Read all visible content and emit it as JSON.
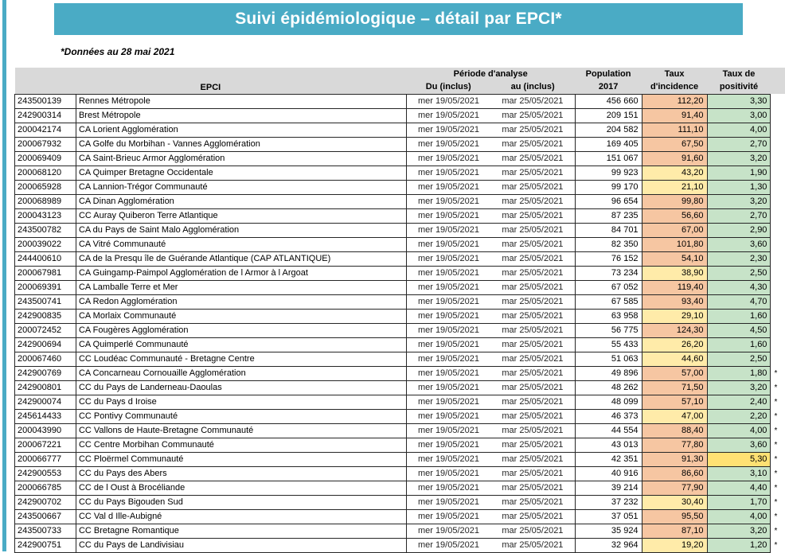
{
  "page": {
    "title": "Suivi épidémiologique – détail par EPCI*",
    "subtitle": "*Données au 28 mai 2021"
  },
  "colors": {
    "banner_teal": "#4aabc5",
    "header_gray": "#d9d9d9",
    "incidence_high_salmon": "#f6c6a2",
    "incidence_moderate_yellow": "#ffeba9",
    "positivity_green": "#c7e3c8",
    "positivity_gold": "#ffe173",
    "link_blue": "#4472c4"
  },
  "table": {
    "headers": {
      "epci": "EPCI",
      "periode": "Période d'analyse",
      "du": "Du (inclus)",
      "au": "au (inclus)",
      "population_l1": "Population",
      "population_l2": "2017",
      "incidence_l1": "Taux",
      "incidence_l2": "d'incidence",
      "positivite_l1": "Taux de",
      "positivite_l2": "positivité"
    },
    "rows": [
      {
        "code": "243500139",
        "name": "Rennes Métropole",
        "du": "mer 19/05/2021",
        "au": "mar 25/05/2021",
        "au_blue": true,
        "population": "456 660",
        "incidence": "112,20",
        "inc_level": "salmon",
        "positivite": "3,30",
        "pos_level": "green",
        "star": false
      },
      {
        "code": "242900314",
        "name": "Brest Métropole",
        "du": "mer 19/05/2021",
        "au": "mar 25/05/2021",
        "au_blue": false,
        "population": "209 151",
        "incidence": "91,40",
        "inc_level": "salmon",
        "positivite": "3,00",
        "pos_level": "green",
        "star": false
      },
      {
        "code": "200042174",
        "name": "CA Lorient Agglomération",
        "du": "mer 19/05/2021",
        "au": "mar 25/05/2021",
        "au_blue": false,
        "population": "204 582",
        "incidence": "111,10",
        "inc_level": "salmon",
        "positivite": "4,00",
        "pos_level": "green",
        "star": false
      },
      {
        "code": "200067932",
        "name": "CA Golfe du Morbihan - Vannes Agglomération",
        "du": "mer 19/05/2021",
        "au": "mar 25/05/2021",
        "au_blue": false,
        "population": "169 405",
        "incidence": "67,50",
        "inc_level": "salmon",
        "positivite": "2,70",
        "pos_level": "green",
        "star": false
      },
      {
        "code": "200069409",
        "name": "CA Saint-Brieuc Armor Agglomération",
        "du": "mer 19/05/2021",
        "au": "mar 25/05/2021",
        "au_blue": false,
        "population": "151 067",
        "incidence": "91,60",
        "inc_level": "salmon",
        "positivite": "3,20",
        "pos_level": "green",
        "star": false
      },
      {
        "code": "200068120",
        "name": "CA Quimper Bretagne Occidentale",
        "du": "mer 19/05/2021",
        "au": "mar 25/05/2021",
        "au_blue": false,
        "population": "99 923",
        "incidence": "43,20",
        "inc_level": "yellow",
        "positivite": "1,90",
        "pos_level": "green",
        "star": false
      },
      {
        "code": "200065928",
        "name": "CA Lannion-Trégor Communauté",
        "du": "mer 19/05/2021",
        "au": "mar 25/05/2021",
        "au_blue": false,
        "population": "99 170",
        "incidence": "21,10",
        "inc_level": "yellow",
        "positivite": "1,30",
        "pos_level": "green",
        "star": false
      },
      {
        "code": "200068989",
        "name": "CA Dinan Agglomération",
        "du": "mer 19/05/2021",
        "au": "mar 25/05/2021",
        "au_blue": false,
        "population": "96 654",
        "incidence": "99,80",
        "inc_level": "salmon",
        "positivite": "3,20",
        "pos_level": "green",
        "star": false
      },
      {
        "code": "200043123",
        "name": "CC Auray Quiberon Terre Atlantique",
        "du": "mer 19/05/2021",
        "au": "mar 25/05/2021",
        "au_blue": false,
        "population": "87 235",
        "incidence": "56,60",
        "inc_level": "salmon",
        "positivite": "2,70",
        "pos_level": "green",
        "star": false
      },
      {
        "code": "243500782",
        "name": "CA du Pays de Saint Malo Agglomération",
        "du": "mer 19/05/2021",
        "au": "mar 25/05/2021",
        "au_blue": false,
        "population": "84 701",
        "incidence": "67,00",
        "inc_level": "salmon",
        "positivite": "2,90",
        "pos_level": "green",
        "star": false
      },
      {
        "code": "200039022",
        "name": "CA Vitré Communauté",
        "du": "mer 19/05/2021",
        "au": "mar 25/05/2021",
        "au_blue": false,
        "population": "82 350",
        "incidence": "101,80",
        "inc_level": "salmon",
        "positivite": "3,60",
        "pos_level": "green",
        "star": false
      },
      {
        "code": "244400610",
        "name": "CA de la Presqu île de Guérande Atlantique (CAP ATLANTIQUE)",
        "du": "mer 19/05/2021",
        "au": "mar 25/05/2021",
        "au_blue": false,
        "population": "76 152",
        "incidence": "54,10",
        "inc_level": "salmon",
        "positivite": "2,30",
        "pos_level": "green",
        "star": false
      },
      {
        "code": "200067981",
        "name": "CA Guingamp-Paimpol Agglomération de l Armor à  l Argoat",
        "du": "mer 19/05/2021",
        "au": "mar 25/05/2021",
        "au_blue": false,
        "population": "73 234",
        "incidence": "38,90",
        "inc_level": "yellow",
        "positivite": "2,50",
        "pos_level": "green",
        "star": false
      },
      {
        "code": "200069391",
        "name": "CA Lamballe Terre et Mer",
        "du": "mer 19/05/2021",
        "au": "mar 25/05/2021",
        "au_blue": false,
        "population": "67 052",
        "incidence": "119,40",
        "inc_level": "salmon",
        "positivite": "4,30",
        "pos_level": "green",
        "star": false
      },
      {
        "code": "243500741",
        "name": "CA Redon Agglomération",
        "du": "mer 19/05/2021",
        "au": "mar 25/05/2021",
        "au_blue": false,
        "population": "67 585",
        "incidence": "93,40",
        "inc_level": "salmon",
        "positivite": "4,70",
        "pos_level": "green",
        "star": false
      },
      {
        "code": "242900835",
        "name": "CA Morlaix Communauté",
        "du": "mer 19/05/2021",
        "au": "mar 25/05/2021",
        "au_blue": false,
        "population": "63 958",
        "incidence": "29,10",
        "inc_level": "yellow",
        "positivite": "1,60",
        "pos_level": "green",
        "star": false
      },
      {
        "code": "200072452",
        "name": "CA Fougères Agglomération",
        "du": "mer 19/05/2021",
        "au": "mar 25/05/2021",
        "au_blue": false,
        "population": "56 775",
        "incidence": "124,30",
        "inc_level": "salmon",
        "positivite": "4,50",
        "pos_level": "green",
        "star": false
      },
      {
        "code": "242900694",
        "name": "CA Quimperlé Communauté",
        "du": "mer 19/05/2021",
        "au": "mar 25/05/2021",
        "au_blue": false,
        "population": "55 433",
        "incidence": "26,20",
        "inc_level": "yellow",
        "positivite": "1,60",
        "pos_level": "green",
        "star": false
      },
      {
        "code": "200067460",
        "name": "CC Loudéac Communauté - Bretagne Centre",
        "du": "mer 19/05/2021",
        "au": "mar 25/05/2021",
        "au_blue": false,
        "population": "51 063",
        "incidence": "44,60",
        "inc_level": "yellow",
        "positivite": "2,50",
        "pos_level": "green",
        "star": false
      },
      {
        "code": "242900769",
        "name": "CA Concarneau Cornouaille Agglomération",
        "du": "mer 19/05/2021",
        "au": "mar 25/05/2021",
        "au_blue": false,
        "population": "49 896",
        "incidence": "57,00",
        "inc_level": "salmon",
        "positivite": "1,80",
        "pos_level": "green",
        "star": true
      },
      {
        "code": "242900801",
        "name": "CC du Pays de Landerneau-Daoulas",
        "du": "mer 19/05/2021",
        "au": "mar 25/05/2021",
        "au_blue": false,
        "population": "48 262",
        "incidence": "71,50",
        "inc_level": "salmon",
        "positivite": "3,20",
        "pos_level": "green",
        "star": true
      },
      {
        "code": "242900074",
        "name": "CC du Pays d Iroise",
        "du": "mer 19/05/2021",
        "au": "mar 25/05/2021",
        "au_blue": false,
        "population": "48 099",
        "incidence": "57,10",
        "inc_level": "salmon",
        "positivite": "2,40",
        "pos_level": "green",
        "star": true
      },
      {
        "code": "245614433",
        "name": "CC Pontivy Communauté",
        "du": "mer 19/05/2021",
        "au": "mar 25/05/2021",
        "au_blue": false,
        "population": "46 373",
        "incidence": "47,00",
        "inc_level": "yellow",
        "positivite": "2,20",
        "pos_level": "green",
        "star": true
      },
      {
        "code": "200043990",
        "name": "CC Vallons de Haute-Bretagne Communauté",
        "du": "mer 19/05/2021",
        "au": "mar 25/05/2021",
        "au_blue": false,
        "population": "44 554",
        "incidence": "88,40",
        "inc_level": "salmon",
        "positivite": "4,00",
        "pos_level": "green",
        "star": true
      },
      {
        "code": "200067221",
        "name": "CC Centre Morbihan Communauté",
        "du": "mer 19/05/2021",
        "au": "mar 25/05/2021",
        "au_blue": false,
        "population": "43 013",
        "incidence": "77,80",
        "inc_level": "salmon",
        "positivite": "3,60",
        "pos_level": "green",
        "star": true
      },
      {
        "code": "200066777",
        "name": "CC Ploërmel Communauté",
        "du": "mer 19/05/2021",
        "au": "mar 25/05/2021",
        "au_blue": false,
        "population": "42 351",
        "incidence": "91,30",
        "inc_level": "salmon",
        "positivite": "5,30",
        "pos_level": "gold",
        "star": true
      },
      {
        "code": "242900553",
        "name": "CC du Pays des Abers",
        "du": "mer 19/05/2021",
        "au": "mar 25/05/2021",
        "au_blue": false,
        "population": "40 916",
        "incidence": "86,60",
        "inc_level": "salmon",
        "positivite": "3,10",
        "pos_level": "green",
        "star": true
      },
      {
        "code": "200066785",
        "name": "CC de l Oust à  Brocéliande",
        "du": "mer 19/05/2021",
        "au": "mar 25/05/2021",
        "au_blue": false,
        "population": "39 214",
        "incidence": "77,90",
        "inc_level": "salmon",
        "positivite": "4,40",
        "pos_level": "green",
        "star": true
      },
      {
        "code": "242900702",
        "name": "CC du Pays Bigouden Sud",
        "du": "mer 19/05/2021",
        "au": "mar 25/05/2021",
        "au_blue": false,
        "population": "37 232",
        "incidence": "30,40",
        "inc_level": "yellow",
        "positivite": "1,70",
        "pos_level": "green",
        "star": true
      },
      {
        "code": "243500667",
        "name": "CC Val d Ille-Aubigné",
        "du": "mer 19/05/2021",
        "au": "mar 25/05/2021",
        "au_blue": false,
        "population": "37 051",
        "incidence": "95,50",
        "inc_level": "salmon",
        "positivite": "4,00",
        "pos_level": "green",
        "star": true
      },
      {
        "code": "243500733",
        "name": "CC Bretagne Romantique",
        "du": "mer 19/05/2021",
        "au": "mar 25/05/2021",
        "au_blue": false,
        "population": "35 924",
        "incidence": "87,10",
        "inc_level": "salmon",
        "positivite": "3,20",
        "pos_level": "green",
        "star": true
      },
      {
        "code": "242900751",
        "name": "CC du Pays de Landivisiau",
        "du": "mer 19/05/2021",
        "au": "mar 25/05/2021",
        "au_blue": false,
        "population": "32 964",
        "incidence": "19,20",
        "inc_level": "yellow",
        "positivite": "1,20",
        "pos_level": "green",
        "star": true
      }
    ]
  }
}
